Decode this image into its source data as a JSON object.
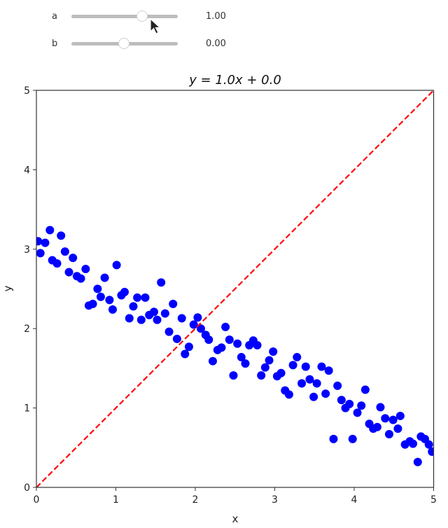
{
  "controls": {
    "sliders": [
      {
        "name": "a",
        "value": 1.0,
        "value_label": "1.00",
        "knob_x": 203
      },
      {
        "name": "b",
        "value": 0.0,
        "value_label": "0.00",
        "knob_x": 177
      }
    ]
  },
  "chart_data": {
    "type": "scatter",
    "title": "y = 1.0x + 0.0",
    "xlabel": "x",
    "ylabel": "y",
    "xlim": [
      0,
      5
    ],
    "ylim": [
      0,
      5
    ],
    "xticks": [
      0,
      1,
      2,
      3,
      4,
      5
    ],
    "yticks": [
      0,
      1,
      2,
      3,
      4,
      5
    ],
    "grid": false,
    "legend": null,
    "series": [
      {
        "name": "data",
        "kind": "scatter",
        "color": "#0000ff",
        "points": [
          [
            0.02,
            3.1
          ],
          [
            0.05,
            2.95
          ],
          [
            0.11,
            3.08
          ],
          [
            0.17,
            3.24
          ],
          [
            0.2,
            2.86
          ],
          [
            0.26,
            2.82
          ],
          [
            0.31,
            3.17
          ],
          [
            0.36,
            2.97
          ],
          [
            0.41,
            2.71
          ],
          [
            0.46,
            2.89
          ],
          [
            0.51,
            2.66
          ],
          [
            0.56,
            2.63
          ],
          [
            0.62,
            2.75
          ],
          [
            0.66,
            2.29
          ],
          [
            0.71,
            2.31
          ],
          [
            0.77,
            2.5
          ],
          [
            0.81,
            2.4
          ],
          [
            0.86,
            2.64
          ],
          [
            0.92,
            2.36
          ],
          [
            0.96,
            2.24
          ],
          [
            1.01,
            2.8
          ],
          [
            1.07,
            2.42
          ],
          [
            1.11,
            2.46
          ],
          [
            1.17,
            2.13
          ],
          [
            1.22,
            2.28
          ],
          [
            1.27,
            2.39
          ],
          [
            1.32,
            2.11
          ],
          [
            1.37,
            2.39
          ],
          [
            1.42,
            2.17
          ],
          [
            1.48,
            2.21
          ],
          [
            1.52,
            2.11
          ],
          [
            1.57,
            2.58
          ],
          [
            1.62,
            2.19
          ],
          [
            1.67,
            1.96
          ],
          [
            1.72,
            2.31
          ],
          [
            1.77,
            1.87
          ],
          [
            1.83,
            2.13
          ],
          [
            1.87,
            1.68
          ],
          [
            1.92,
            1.77
          ],
          [
            1.98,
            2.05
          ],
          [
            2.03,
            2.14
          ],
          [
            2.07,
            2.0
          ],
          [
            2.13,
            1.92
          ],
          [
            2.17,
            1.86
          ],
          [
            2.22,
            1.59
          ],
          [
            2.28,
            1.73
          ],
          [
            2.33,
            1.76
          ],
          [
            2.38,
            2.02
          ],
          [
            2.43,
            1.86
          ],
          [
            2.48,
            1.41
          ],
          [
            2.53,
            1.81
          ],
          [
            2.58,
            1.64
          ],
          [
            2.63,
            1.56
          ],
          [
            2.68,
            1.79
          ],
          [
            2.73,
            1.85
          ],
          [
            2.78,
            1.79
          ],
          [
            2.83,
            1.41
          ],
          [
            2.88,
            1.51
          ],
          [
            2.93,
            1.6
          ],
          [
            2.98,
            1.71
          ],
          [
            3.03,
            1.4
          ],
          [
            3.08,
            1.44
          ],
          [
            3.13,
            1.22
          ],
          [
            3.18,
            1.17
          ],
          [
            3.23,
            1.54
          ],
          [
            3.28,
            1.64
          ],
          [
            3.34,
            1.31
          ],
          [
            3.39,
            1.52
          ],
          [
            3.44,
            1.36
          ],
          [
            3.49,
            1.14
          ],
          [
            3.53,
            1.31
          ],
          [
            3.59,
            1.52
          ],
          [
            3.64,
            1.18
          ],
          [
            3.68,
            1.47
          ],
          [
            3.74,
            0.61
          ],
          [
            3.79,
            1.28
          ],
          [
            3.84,
            1.1
          ],
          [
            3.89,
            1.0
          ],
          [
            3.94,
            1.05
          ],
          [
            3.98,
            0.61
          ],
          [
            4.04,
            0.94
          ],
          [
            4.09,
            1.03
          ],
          [
            4.14,
            1.23
          ],
          [
            4.19,
            0.8
          ],
          [
            4.24,
            0.74
          ],
          [
            4.29,
            0.76
          ],
          [
            4.33,
            1.01
          ],
          [
            4.39,
            0.87
          ],
          [
            4.44,
            0.67
          ],
          [
            4.49,
            0.85
          ],
          [
            4.55,
            0.74
          ],
          [
            4.58,
            0.9
          ],
          [
            4.64,
            0.54
          ],
          [
            4.7,
            0.58
          ],
          [
            4.74,
            0.55
          ],
          [
            4.8,
            0.32
          ],
          [
            4.84,
            0.64
          ],
          [
            4.89,
            0.61
          ],
          [
            4.94,
            0.54
          ],
          [
            4.98,
            0.45
          ]
        ]
      },
      {
        "name": "fit line",
        "kind": "line",
        "style": "dashed",
        "color": "#ff0000",
        "points": [
          [
            0,
            0
          ],
          [
            5,
            5
          ]
        ]
      }
    ]
  }
}
